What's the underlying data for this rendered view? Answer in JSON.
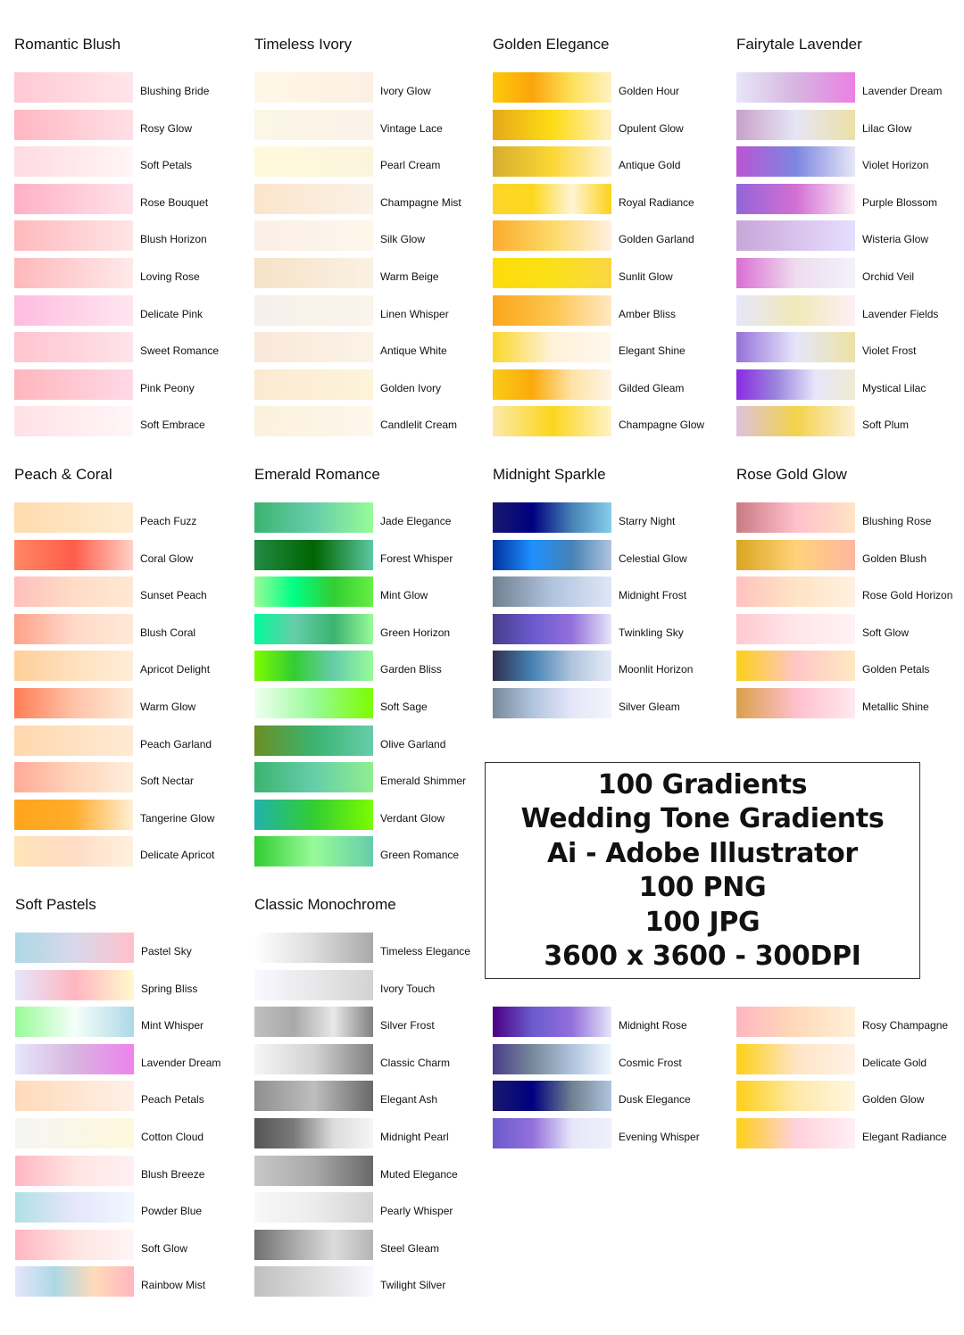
{
  "groups": [
    {
      "title": "Romantic Blush",
      "items": [
        {
          "name": "Blushing Bride",
          "colors": [
            "#ffc9d3",
            "#ffe6ea"
          ]
        },
        {
          "name": "Rosy Glow",
          "colors": [
            "#ffb7c3",
            "#ffe0e6"
          ]
        },
        {
          "name": "Soft Petals",
          "colors": [
            "#ffdbe2",
            "#fff5f7"
          ]
        },
        {
          "name": "Rose Bouquet",
          "colors": [
            "#ffb0c6",
            "#ffe3ea"
          ]
        },
        {
          "name": "Blush Horizon",
          "colors": [
            "#ffb9bd",
            "#ffe5e6"
          ]
        },
        {
          "name": "Loving Rose",
          "colors": [
            "#ffb8bb",
            "#ffe9ea"
          ]
        },
        {
          "name": "Delicate Pink",
          "colors": [
            "#ffbce0",
            "#ffe6f0"
          ]
        },
        {
          "name": "Sweet Romance",
          "colors": [
            "#ffc4cf",
            "#ffe4ea"
          ]
        },
        {
          "name": "Pink Peony",
          "colors": [
            "#ffb6bd",
            "#ffd9e6"
          ]
        },
        {
          "name": "Soft Embrace",
          "colors": [
            "#ffe1e6",
            "#fff6f8"
          ]
        }
      ]
    },
    {
      "title": "Timeless Ivory",
      "items": [
        {
          "name": "Ivory Glow",
          "colors": [
            "#fff7e6",
            "#fbf0e3"
          ]
        },
        {
          "name": "Vintage Lace",
          "colors": [
            "#fbf6e6",
            "#fbf2e8"
          ]
        },
        {
          "name": "Pearl Cream",
          "colors": [
            "#fff9dc",
            "#fbf5de"
          ]
        },
        {
          "name": "Champagne Mist",
          "colors": [
            "#fbe5cc",
            "#fbf1e6"
          ]
        },
        {
          "name": "Silk Glow",
          "colors": [
            "#fbefe6",
            "#fdf7ea"
          ]
        },
        {
          "name": "Warm Beige",
          "colors": [
            "#f6e2c7",
            "#faf1e3"
          ]
        },
        {
          "name": "Linen Whisper",
          "colors": [
            "#f5f0ea",
            "#faf4eb"
          ]
        },
        {
          "name": "Antique White",
          "colors": [
            "#f9e8d9",
            "#fbf3e6"
          ]
        },
        {
          "name": "Golden Ivory",
          "colors": [
            "#fbead1",
            "#fdf4d9"
          ]
        },
        {
          "name": "Candlelit Cream",
          "colors": [
            "#fbf1dc",
            "#fdf7ec"
          ]
        }
      ]
    },
    {
      "title": "Golden Elegance",
      "items": [
        {
          "name": "Golden Hour",
          "colors": [
            "#fdc909",
            "#fba40b",
            "#fde05a",
            "#fff1c2"
          ]
        },
        {
          "name": "Opulent Glow",
          "colors": [
            "#e7a81b",
            "#fddc14",
            "#fff2c8"
          ]
        },
        {
          "name": "Antique Gold",
          "colors": [
            "#d6ad2f",
            "#fbd735",
            "#fff3d6"
          ]
        },
        {
          "name": "Royal Radiance",
          "colors": [
            "#fdd52b",
            "#fdd81e",
            "#fff4d6",
            "#fbd31a"
          ]
        },
        {
          "name": "Golden Garland",
          "colors": [
            "#fbac2d",
            "#fdd968",
            "#fff0e0"
          ]
        },
        {
          "name": "Sunlit Glow",
          "colors": [
            "#fddc09",
            "#fbe019",
            "#fbd645"
          ]
        },
        {
          "name": "Amber Bliss",
          "colors": [
            "#fba61b",
            "#fdc54d",
            "#ffe8c3"
          ]
        },
        {
          "name": "Elegant Shine",
          "colors": [
            "#fbd729",
            "#fff1d9",
            "#fff8ee"
          ]
        },
        {
          "name": "Gilded Gleam",
          "colors": [
            "#fbcb16",
            "#fbaa0b",
            "#fde3a6",
            "#fff4e6"
          ]
        },
        {
          "name": "Champagne Glow",
          "colors": [
            "#fde9a9",
            "#fbd61d",
            "#fff3c8"
          ]
        }
      ]
    },
    {
      "title": "Fairytale Lavender",
      "items": [
        {
          "name": "Lavender Dream",
          "colors": [
            "#e8e6f8",
            "#d6b5e0",
            "#eb7fe4"
          ]
        },
        {
          "name": "Lilac Glow",
          "colors": [
            "#c9a1cb",
            "#e6e6f5",
            "#ece0a6"
          ]
        },
        {
          "name": "Violet Horizon",
          "colors": [
            "#ba55d3",
            "#7d86e0",
            "#e7e7f7"
          ]
        },
        {
          "name": "Purple Blossom",
          "colors": [
            "#9365d8",
            "#d36fd3",
            "#fdeef8"
          ]
        },
        {
          "name": "Wisteria Glow",
          "colors": [
            "#c9a6d9",
            "#e6dfff"
          ]
        },
        {
          "name": "Orchid Veil",
          "colors": [
            "#db6ed3",
            "#efdcef",
            "#f2f2fb"
          ]
        },
        {
          "name": "Lavender Fields",
          "colors": [
            "#e5e6fa",
            "#f0e9b8",
            "#fdf0f5"
          ]
        },
        {
          "name": "Violet Frost",
          "colors": [
            "#9671d9",
            "#e6e6fa",
            "#ece2a3"
          ]
        },
        {
          "name": "Mystical Lilac",
          "colors": [
            "#8a2be2",
            "#9a84dd",
            "#e6e6fa",
            "#f0ebd2"
          ]
        },
        {
          "name": "Soft Plum",
          "colors": [
            "#ddc3dd",
            "#f3d24b",
            "#fdf0d6"
          ]
        }
      ]
    },
    {
      "title": "Peach & Coral",
      "items": [
        {
          "name": "Peach Fuzz",
          "colors": [
            "#ffdbaf",
            "#ffedd2"
          ]
        },
        {
          "name": "Coral Glow",
          "colors": [
            "#ff8764",
            "#ff5d4a",
            "#ffd2c6"
          ]
        },
        {
          "name": "Sunset Peach",
          "colors": [
            "#ffbfbd",
            "#ffdcc6",
            "#ffe8d3"
          ]
        },
        {
          "name": "Blush Coral",
          "colors": [
            "#ffa28b",
            "#ffd8c8",
            "#ffe9d6"
          ]
        },
        {
          "name": "Apricot Delight",
          "colors": [
            "#ffcf9a",
            "#ffe0bd",
            "#ffeed8"
          ]
        },
        {
          "name": "Warm Glow",
          "colors": [
            "#ff7d57",
            "#ffc3a8",
            "#ffead6"
          ]
        },
        {
          "name": "Peach Garland",
          "colors": [
            "#ffd8ad",
            "#ffead5"
          ]
        },
        {
          "name": "Soft Nectar",
          "colors": [
            "#ffaa9a",
            "#ffd4b8",
            "#ffeedd"
          ]
        },
        {
          "name": "Tangerine Glow",
          "colors": [
            "#ffa41b",
            "#ffad2c",
            "#ffefd6"
          ]
        },
        {
          "name": "Delicate Apricot",
          "colors": [
            "#ffe4b8",
            "#ffdcc4",
            "#fff1de"
          ]
        }
      ]
    },
    {
      "title": "Emerald Romance",
      "items": [
        {
          "name": "Jade Elegance",
          "colors": [
            "#3cb371",
            "#66cdaa",
            "#98fb98"
          ]
        },
        {
          "name": "Forest Whisper",
          "colors": [
            "#228b46",
            "#006400",
            "#5cc9a3"
          ]
        },
        {
          "name": "Mint Glow",
          "colors": [
            "#98fb98",
            "#00ff85",
            "#32cd32",
            "#66ee44"
          ]
        },
        {
          "name": "Green Horizon",
          "colors": [
            "#00fa9a",
            "#66cdaa",
            "#3cb371",
            "#98fb98"
          ]
        },
        {
          "name": "Garden Bliss",
          "colors": [
            "#7cfc00",
            "#32cd32",
            "#66cdaa",
            "#98fb98"
          ]
        },
        {
          "name": "Soft Sage",
          "colors": [
            "#f0fff0",
            "#98fb98",
            "#7cfc00"
          ]
        },
        {
          "name": "Olive Garland",
          "colors": [
            "#6b8e23",
            "#3cb371",
            "#66cdaa"
          ]
        },
        {
          "name": "Emerald Shimmer",
          "colors": [
            "#3cb371",
            "#66cdaa",
            "#90ee90"
          ]
        },
        {
          "name": "Verdant Glow",
          "colors": [
            "#20b2aa",
            "#32cd32",
            "#7cfc00"
          ]
        },
        {
          "name": "Green Romance",
          "colors": [
            "#32cd32",
            "#98fb98",
            "#66cdaa"
          ]
        }
      ]
    },
    {
      "title": "Midnight Sparkle",
      "items": [
        {
          "name": "Starry Night",
          "colors": [
            "#191970",
            "#000080",
            "#4682b4",
            "#87ceeb"
          ]
        },
        {
          "name": "Celestial Glow",
          "colors": [
            "#0032a0",
            "#1e90ff",
            "#4682b4",
            "#b0c4de"
          ]
        },
        {
          "name": "Midnight Frost",
          "colors": [
            "#708090",
            "#b0c4de",
            "#dfe6f7"
          ]
        },
        {
          "name": "Twinkling Sky",
          "colors": [
            "#483d8b",
            "#6a5acd",
            "#9370db",
            "#e6e6fa"
          ]
        },
        {
          "name": "Moonlit Horizon",
          "colors": [
            "#2f2f4f",
            "#4682b4",
            "#b0c4de",
            "#e6ecf8"
          ]
        },
        {
          "name": "Silver Gleam",
          "colors": [
            "#778899",
            "#b0c4de",
            "#e6e6fa",
            "#f4f4fb"
          ]
        }
      ]
    },
    {
      "title": "Rose Gold Glow",
      "items": [
        {
          "name": "Blushing Rose",
          "colors": [
            "#c97b84",
            "#ffc0cb",
            "#ffe4c4"
          ]
        },
        {
          "name": "Golden Blush",
          "colors": [
            "#daa520",
            "#ffd27a",
            "#ffb6a0"
          ]
        },
        {
          "name": "Rose Gold Horizon",
          "colors": [
            "#ffc2c0",
            "#ffe4c4",
            "#fff0e0"
          ]
        },
        {
          "name": "Soft Glow",
          "colors": [
            "#ffc9d0",
            "#ffe6ea",
            "#fff2f4"
          ]
        },
        {
          "name": "Golden Petals",
          "colors": [
            "#fdd017",
            "#ffc6c6",
            "#ffe9c4"
          ]
        },
        {
          "name": "Metallic Shine",
          "colors": [
            "#daa04a",
            "#ffc0cb",
            "#ffe8f0"
          ]
        }
      ]
    },
    {
      "title": "Soft Pastels",
      "items": [
        {
          "name": "Pastel Sky",
          "colors": [
            "#add8e6",
            "#d8d8ea",
            "#ffc0cb"
          ]
        },
        {
          "name": "Spring Bliss",
          "colors": [
            "#e6e6fa",
            "#ffb6c1",
            "#fffacd"
          ]
        },
        {
          "name": "Mint Whisper",
          "colors": [
            "#98fb98",
            "#f5fffa",
            "#add8e6"
          ]
        },
        {
          "name": "Lavender Dream",
          "colors": [
            "#e6e6fa",
            "#d8b5e0",
            "#ee82ee"
          ]
        },
        {
          "name": "Peach Petals",
          "colors": [
            "#ffdab9",
            "#fff0e8"
          ]
        },
        {
          "name": "Cotton Cloud",
          "colors": [
            "#f5f5f5",
            "#fff8dc"
          ]
        },
        {
          "name": "Blush Breeze",
          "colors": [
            "#ffb6c1",
            "#ffe4e1",
            "#fff0f5"
          ]
        },
        {
          "name": "Powder Blue",
          "colors": [
            "#b0e0e6",
            "#e6e6fa",
            "#f0f8ff"
          ]
        },
        {
          "name": "Soft Glow",
          "colors": [
            "#ffb6c1",
            "#ffe4e1",
            "#fff5f5"
          ]
        },
        {
          "name": "Rainbow Mist",
          "colors": [
            "#e6e6fa",
            "#add8e6",
            "#ffdab9",
            "#ffb6c1"
          ]
        }
      ]
    },
    {
      "title": "Classic Monochrome",
      "items": [
        {
          "name": "Timeless Elegance",
          "colors": [
            "#ffffff",
            "#dcdcdc",
            "#a9a9a9"
          ]
        },
        {
          "name": "Ivory Touch",
          "colors": [
            "#f8f8ff",
            "#e8e8ea",
            "#d3d3d3"
          ]
        },
        {
          "name": "Silver Frost",
          "colors": [
            "#c0c0c0",
            "#a9a9a9",
            "#e8e8e8",
            "#808080"
          ]
        },
        {
          "name": "Classic Charm",
          "colors": [
            "#f5f5f5",
            "#d3d3d3",
            "#808080"
          ]
        },
        {
          "name": "Elegant Ash",
          "colors": [
            "#8f8f8f",
            "#bebebe",
            "#696969"
          ]
        },
        {
          "name": "Midnight Pearl",
          "colors": [
            "#555555",
            "#7a7a7a",
            "#dcdcdc",
            "#f5f5f5"
          ]
        },
        {
          "name": "Muted Elegance",
          "colors": [
            "#c8c8c8",
            "#a9a9a9",
            "#696969"
          ]
        },
        {
          "name": "Pearly Whisper",
          "colors": [
            "#f8f8f8",
            "#ececec",
            "#d3d3d3"
          ]
        },
        {
          "name": "Steel Gleam",
          "colors": [
            "#707070",
            "#a9a9a9",
            "#dcdcdc",
            "#b5b5b5"
          ]
        },
        {
          "name": "Twilight Silver",
          "colors": [
            "#c0c0c0",
            "#dcdcdc",
            "#f8f8ff"
          ]
        }
      ]
    },
    {
      "title": "",
      "items": [
        {
          "name": "Midnight Rose",
          "colors": [
            "#4b0082",
            "#6a5acd",
            "#9370db",
            "#e6e6fa"
          ]
        },
        {
          "name": "Cosmic Frost",
          "colors": [
            "#483d8b",
            "#778899",
            "#b0c4de",
            "#f0f8ff"
          ]
        },
        {
          "name": "Dusk Elegance",
          "colors": [
            "#191970",
            "#000080",
            "#708090",
            "#b0c4de"
          ]
        },
        {
          "name": "Evening Whisper",
          "colors": [
            "#6a5acd",
            "#9370db",
            "#e6e6fa",
            "#f0f0fa"
          ]
        }
      ]
    },
    {
      "title": "",
      "items": [
        {
          "name": "Rosy Champagne",
          "colors": [
            "#ffb6c1",
            "#ffdab9",
            "#fff0d9"
          ]
        },
        {
          "name": "Delicate Gold",
          "colors": [
            "#fdd017",
            "#ffe4c4",
            "#fff2e6"
          ]
        },
        {
          "name": "Golden Glow",
          "colors": [
            "#fdd017",
            "#ffe9a8",
            "#fff6e0"
          ]
        },
        {
          "name": "Elegant Radiance",
          "colors": [
            "#fdd017",
            "#ffd1dc",
            "#fff0f5"
          ]
        }
      ]
    }
  ],
  "promo": {
    "lines": [
      "100 Gradients",
      "Wedding Tone Gradients",
      "Ai - Adobe Illustrator",
      "100 PNG",
      "100 JPG",
      "3600 x 3600 - 300DPI"
    ]
  }
}
